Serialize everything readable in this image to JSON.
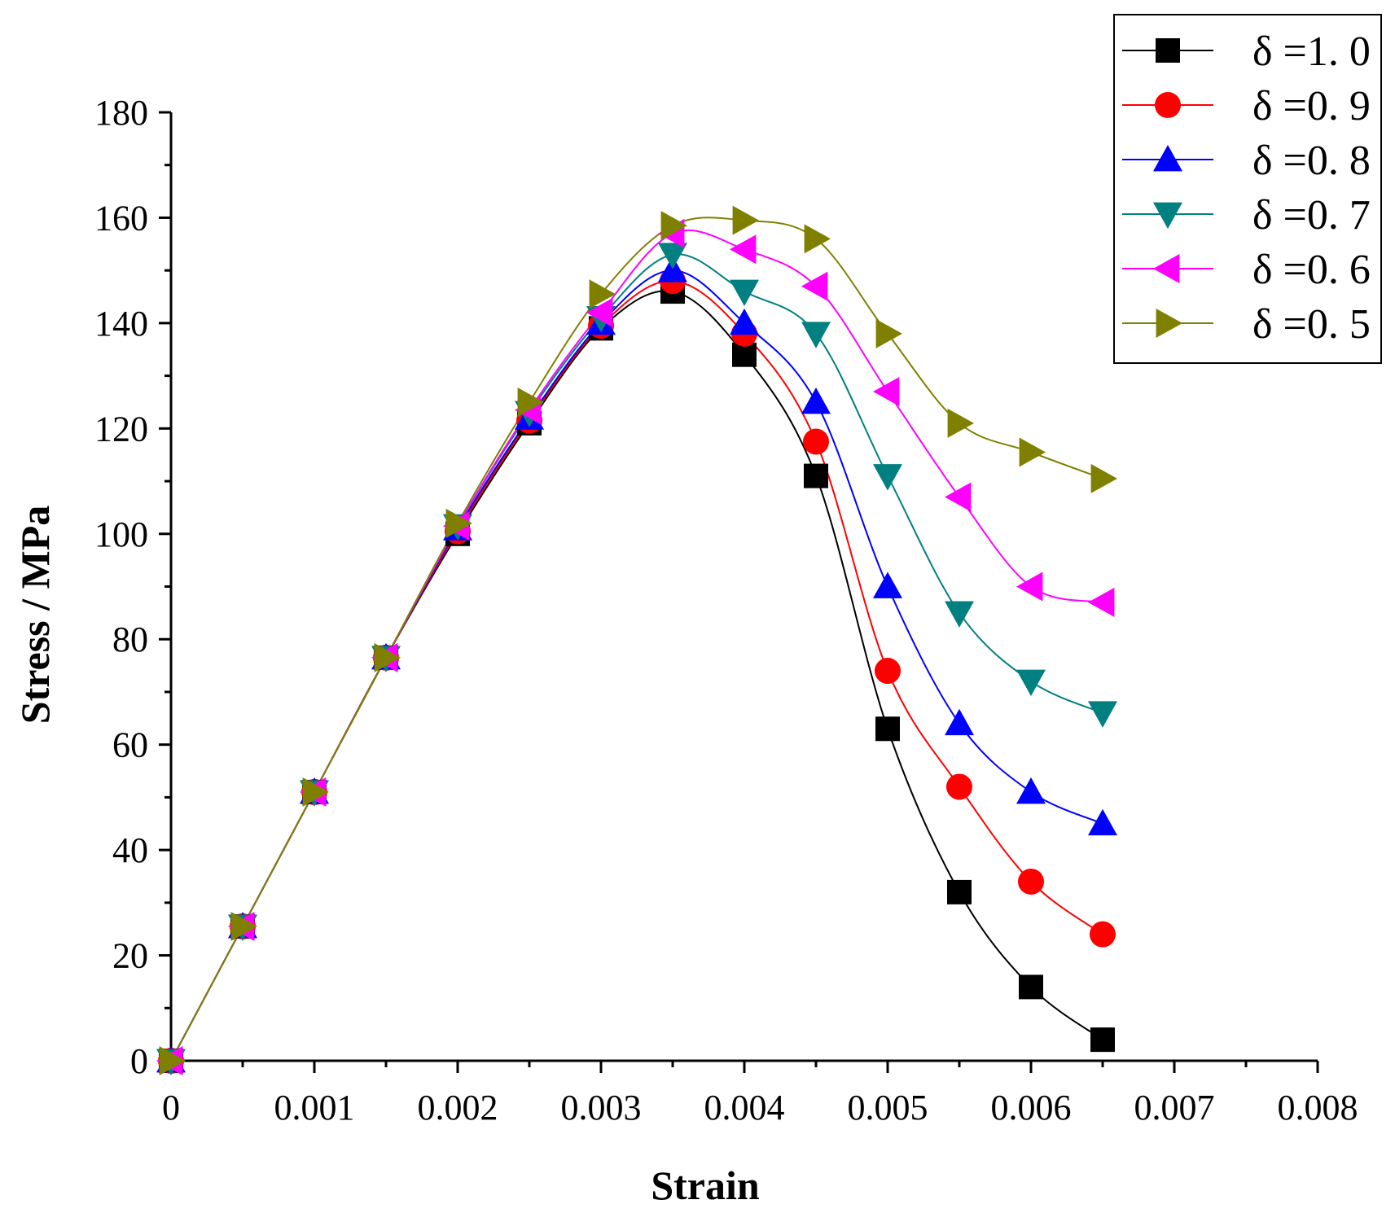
{
  "chart_data": {
    "type": "line",
    "title": "",
    "xlabel": "Strain",
    "ylabel": "Stress / MPa",
    "xlim": [
      0,
      0.008
    ],
    "ylim": [
      0,
      180
    ],
    "x_ticks": [
      0,
      0.001,
      0.002,
      0.003,
      0.004,
      0.005,
      0.006,
      0.007,
      0.008
    ],
    "x_tick_labels": [
      "0",
      "0.001",
      "0.002",
      "0.003",
      "0.004",
      "0.005",
      "0.006",
      "0.007",
      "0.008"
    ],
    "y_ticks": [
      0,
      20,
      40,
      60,
      80,
      100,
      120,
      140,
      160,
      180
    ],
    "y_tick_labels": [
      "0",
      "20",
      "40",
      "60",
      "80",
      "100",
      "120",
      "140",
      "160",
      "180"
    ],
    "grid": false,
    "legend_position": "top-right",
    "x": [
      0,
      0.0005,
      0.001,
      0.0015,
      0.002,
      0.0025,
      0.003,
      0.0035,
      0.004,
      0.0045,
      0.005,
      0.0055,
      0.006,
      0.0065
    ],
    "series": [
      {
        "name": "δ =1. 0",
        "color": "#000000",
        "marker": "square",
        "values": [
          0,
          25.5,
          51,
          76.5,
          100,
          121,
          139,
          146,
          134,
          111,
          63,
          32,
          14,
          4
        ]
      },
      {
        "name": "δ =0. 9",
        "color": "#ff0000",
        "marker": "circle",
        "values": [
          0,
          25.5,
          51,
          76.5,
          100.5,
          121.5,
          139.5,
          148,
          138,
          117.5,
          74,
          52,
          34,
          24
        ]
      },
      {
        "name": "δ =0. 8",
        "color": "#0000ff",
        "marker": "triangle-up",
        "values": [
          0,
          25.5,
          51,
          76.5,
          101,
          122,
          140,
          150,
          140,
          125,
          90,
          64,
          51,
          45
        ]
      },
      {
        "name": "δ =0. 7",
        "color": "#008080",
        "marker": "triangle-down",
        "values": [
          0,
          25.5,
          51,
          76.5,
          101.5,
          123,
          141,
          153,
          146,
          138,
          111,
          85,
          72,
          66
        ]
      },
      {
        "name": "δ =0. 6",
        "color": "#ff00ff",
        "marker": "triangle-left",
        "values": [
          0,
          25.5,
          51,
          76.5,
          101.5,
          123.5,
          142,
          157,
          154,
          147,
          127,
          107,
          90,
          87
        ]
      },
      {
        "name": "δ =0. 5",
        "color": "#808000",
        "marker": "triangle-right",
        "values": [
          0,
          25.5,
          51,
          76.5,
          102,
          125,
          145.5,
          158.5,
          159.5,
          156,
          138,
          121,
          115.5,
          110.5
        ]
      }
    ]
  }
}
